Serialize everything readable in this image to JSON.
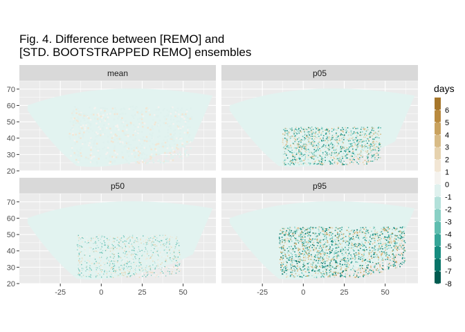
{
  "chart_data": {
    "type": "heatmap",
    "title_lines": [
      "Fig. 4. Difference between [REMO] and",
      "[STD. BOOTSTRAPPED REMO] ensembles"
    ],
    "facets": [
      "mean",
      "p05",
      "p50",
      "p95"
    ],
    "x_ticks": [
      -25,
      0,
      25,
      50
    ],
    "y_ticks": [
      20,
      30,
      40,
      50,
      60,
      70
    ],
    "xlim": [
      -50,
      70
    ],
    "ylim": [
      20,
      75
    ],
    "legend": {
      "title": "days",
      "position": "right",
      "labels": [
        "6",
        "5",
        "4",
        "3",
        "2",
        "1",
        "0",
        "-1",
        "-2",
        "-3",
        "-4",
        "-5",
        "-6",
        "-7",
        "-8"
      ],
      "colors": [
        "#a6762a",
        "#b98a3e",
        "#c9a25e",
        "#d8bb86",
        "#e6d2ae",
        "#f2e6d4",
        "#f5f3ef",
        "#dff1ee",
        "#b3e1da",
        "#8ad0c5",
        "#5fbdaf",
        "#35a597",
        "#168c7f",
        "#077468",
        "#005b50"
      ]
    },
    "domain_outline": {
      "west_lon": -45,
      "east_lon": 68,
      "north_west_lat": 60,
      "north_mid_lat": 73,
      "north_east_lat": 66,
      "south_west_lat": 43,
      "south_mid_lat": 22,
      "south_east_lat": 34
    },
    "base_color": "#e2f3f0",
    "grid": true
  }
}
